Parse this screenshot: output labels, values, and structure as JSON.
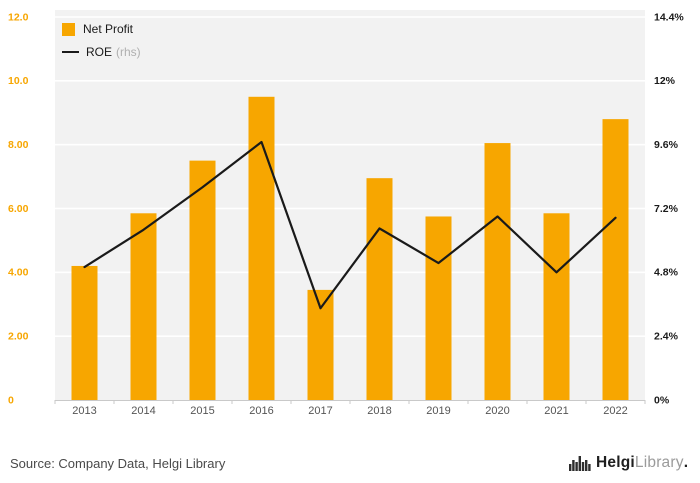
{
  "chart_data": {
    "type": "bar+line",
    "categories": [
      "2013",
      "2014",
      "2015",
      "2016",
      "2017",
      "2018",
      "2019",
      "2020",
      "2021",
      "2022"
    ],
    "series": [
      {
        "name": "Net Profit",
        "type": "bar",
        "axis": "left",
        "values": [
          4.2,
          5.85,
          7.5,
          9.5,
          3.45,
          6.95,
          5.75,
          8.05,
          5.85,
          8.8
        ]
      },
      {
        "name": "ROE",
        "type": "line",
        "axis": "right",
        "values": [
          5.0,
          6.4,
          8.0,
          9.7,
          3.45,
          6.45,
          5.15,
          6.9,
          4.8,
          6.85
        ]
      }
    ],
    "left_axis": {
      "min": 0,
      "max": 12,
      "ticks": [
        "0",
        "2.00",
        "4.00",
        "6.00",
        "8.00",
        "10.0",
        "12.0"
      ]
    },
    "right_axis": {
      "min": 0,
      "max": 14.4,
      "ticks": [
        "0%",
        "2.4%",
        "4.8%",
        "7.2%",
        "9.6%",
        "12%",
        "14.4%"
      ]
    },
    "grid": true,
    "legend_position": "top-left"
  },
  "legend": {
    "net_profit": "Net Profit",
    "roe": "ROE",
    "roe_suffix": "(rhs)"
  },
  "footer": {
    "source": "Source: Company Data, Helgi Library",
    "logo_bold": "Helgi",
    "logo_light": "Library",
    "logo_dot": "."
  },
  "colors": {
    "bar": "#F7A600",
    "line": "#1A1A1A",
    "plot_bg": "#F2F2F2",
    "grid": "#FFFFFF",
    "x_label": "#555555",
    "right_label": "#1A1A1A",
    "axis_line": "#C9C9C9"
  }
}
